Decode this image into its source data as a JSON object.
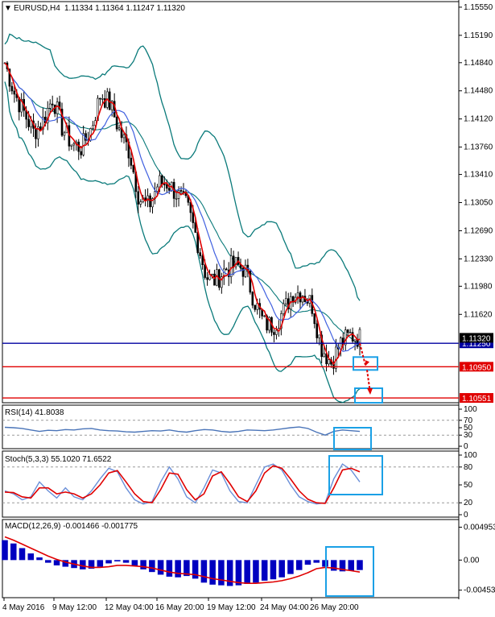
{
  "header": {
    "symbol": "EURUSD,H4",
    "ohlc": "1.11334 1.11364 1.11247 1.11320"
  },
  "chart_data": [
    {
      "type": "candlestick",
      "title": "EURUSD,H4",
      "ylim": [
        1.1051,
        1.1558
      ],
      "y_ticks": [
        "1.15550",
        "1.15190",
        "1.14840",
        "1.14480",
        "1.14120",
        "1.13760",
        "1.13410",
        "1.13050",
        "1.12690",
        "1.12330",
        "1.11980",
        "1.11620",
        "1.11250",
        "1.10950",
        "1.10551"
      ],
      "x_ticks": [
        "4 May 2016",
        "9 May 12:00",
        "12 May 04:00",
        "16 May 20:00",
        "19 May 12:00",
        "24 May 04:00",
        "26 May 20:00"
      ],
      "price_anchor": [
        [
          1.1484,
          1.1445,
          1.142,
          1.1395,
          1.141,
          1.144,
          1.14,
          1.138,
          1.1375,
          1.14,
          1.1445,
          1.143,
          1.1395,
          1.137,
          1.131,
          1.13,
          1.133,
          1.133,
          1.1315,
          1.13,
          1.126,
          1.121,
          1.1205,
          1.122,
          1.1225,
          1.122,
          1.118,
          1.115,
          1.1148,
          1.1165,
          1.119,
          1.119,
          1.1175,
          1.112,
          1.11,
          1.1125,
          1.1135,
          1.1132
        ]
      ],
      "horizontal_lines": [
        {
          "value": 1.1125,
          "label": "1.11250",
          "color": "#0000a0"
        },
        {
          "value": 1.1095,
          "label": "1.10950",
          "color": "#e00000"
        },
        {
          "value": 1.10551,
          "label": "1.10551",
          "color": "#e00000"
        }
      ],
      "current_price_label": "1.11320",
      "bollinger": true,
      "moving_averages": [
        "red",
        "blue"
      ]
    },
    {
      "type": "line",
      "title": "RSI(14) 41.8038",
      "ylim": [
        0,
        100
      ],
      "y_ticks": [
        "100",
        "70",
        "50",
        "30",
        "0"
      ],
      "levels": [
        70,
        30
      ],
      "series": [
        {
          "values": [
            51,
            50,
            48,
            44,
            40,
            43,
            42,
            45,
            44,
            47,
            48,
            44,
            42,
            41,
            39,
            38,
            40,
            42,
            41,
            44,
            40,
            38,
            42,
            45,
            44,
            40,
            38,
            40,
            44,
            43,
            42,
            44,
            47,
            50,
            52,
            48,
            38,
            30,
            40,
            44,
            42,
            40
          ]
        }
      ]
    },
    {
      "type": "line",
      "title": "Stoch(5,3,3) 55.1020 71.6522",
      "ylim": [
        0,
        100
      ],
      "y_ticks": [
        "100",
        "80",
        "50",
        "20",
        "0"
      ],
      "levels": [
        80,
        20
      ],
      "series": [
        {
          "values": [
            40,
            35,
            25,
            30,
            55,
            40,
            28,
            45,
            30,
            25,
            40,
            60,
            78,
            72,
            45,
            25,
            18,
            22,
            55,
            80,
            60,
            30,
            20,
            45,
            75,
            70,
            40,
            22,
            20,
            50,
            80,
            85,
            75,
            50,
            30,
            22,
            18,
            20,
            60,
            85,
            75,
            55
          ]
        },
        {
          "values": [
            38,
            37,
            30,
            28,
            45,
            45,
            35,
            38,
            35,
            28,
            35,
            50,
            70,
            74,
            55,
            35,
            22,
            20,
            42,
            70,
            68,
            42,
            25,
            35,
            65,
            72,
            52,
            30,
            22,
            40,
            70,
            82,
            78,
            60,
            40,
            26,
            20,
            19,
            45,
            75,
            78,
            72
          ]
        }
      ]
    },
    {
      "type": "bar",
      "title": "MACD(12,26,9) -0.001466 -0.001775",
      "ylim": [
        -0.0053,
        0.0055
      ],
      "y_ticks": [
        "0.004953",
        "0.00",
        "-0.004532"
      ],
      "macd": [
        0.003,
        0.0025,
        0.0018,
        0.001,
        0.0004,
        -0.0004,
        -0.0008,
        -0.001,
        -0.0012,
        -0.0014,
        -0.0013,
        -0.001,
        -0.0005,
        -0.0002,
        -0.0004,
        -0.0009,
        -0.0014,
        -0.0018,
        -0.0022,
        -0.0025,
        -0.0026,
        -0.0024,
        -0.0028,
        -0.0034,
        -0.0037,
        -0.0038,
        -0.0039,
        -0.0038,
        -0.0036,
        -0.0034,
        -0.0031,
        -0.0029,
        -0.0026,
        -0.0021,
        -0.0015,
        -0.0007,
        -0.0004,
        -0.001,
        -0.0016,
        -0.0017,
        -0.0016,
        -0.0015
      ],
      "signal": [
        0.0035,
        0.003,
        0.0024,
        0.0018,
        0.0012,
        0.0006,
        0.0001,
        -0.0003,
        -0.0006,
        -0.0009,
        -0.0011,
        -0.0011,
        -0.001,
        -0.0008,
        -0.0008,
        -0.0009,
        -0.001,
        -0.0012,
        -0.0015,
        -0.0018,
        -0.002,
        -0.0021,
        -0.0022,
        -0.0025,
        -0.0028,
        -0.003,
        -0.0032,
        -0.0034,
        -0.0035,
        -0.0035,
        -0.0034,
        -0.0033,
        -0.0031,
        -0.0028,
        -0.0024,
        -0.0019,
        -0.0013,
        -0.0011,
        -0.0012,
        -0.0014,
        -0.0016,
        -0.0018
      ]
    }
  ],
  "colors": {
    "candle": "#000000",
    "ma_fast": "#e00000",
    "ma_slow": "#4060e0",
    "bollinger": "#0a7a7a",
    "rsi": "#4a74b8",
    "stoch_main": "#6a8fd8",
    "stoch_signal": "#e00000",
    "macd_hist": "#0000c0",
    "macd_signal": "#e00000",
    "highlight": "#1aa0e6",
    "support": "#0000a0",
    "target": "#e00000"
  }
}
